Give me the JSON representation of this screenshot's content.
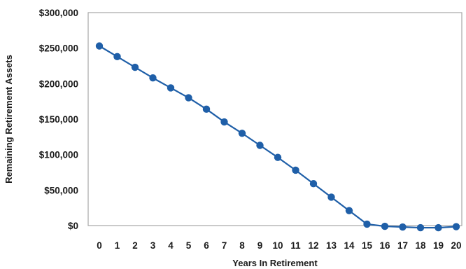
{
  "chart_data": {
    "type": "line",
    "title": "",
    "xlabel": "Years In Retirement",
    "ylabel": "Remaining Retirement Assets",
    "x": [
      0,
      1,
      2,
      3,
      4,
      5,
      6,
      7,
      8,
      9,
      10,
      11,
      12,
      13,
      14,
      15,
      16,
      17,
      18,
      19,
      20
    ],
    "y_tick_labels": [
      "$0",
      "$50,000",
      "$100,000",
      "$150,000",
      "$200,000",
      "$250,000",
      "$300,000"
    ],
    "ylim": [
      0,
      300000
    ],
    "grid": false,
    "legend": "none",
    "series": [
      {
        "color": "#1f5fa8",
        "values": [
          253000,
          238000,
          223000,
          208000,
          194000,
          180000,
          164000,
          146000,
          130000,
          113000,
          96000,
          78000,
          59000,
          40000,
          21000,
          2000,
          -1000,
          -2000,
          -3000,
          -3000,
          -1500
        ]
      }
    ]
  }
}
